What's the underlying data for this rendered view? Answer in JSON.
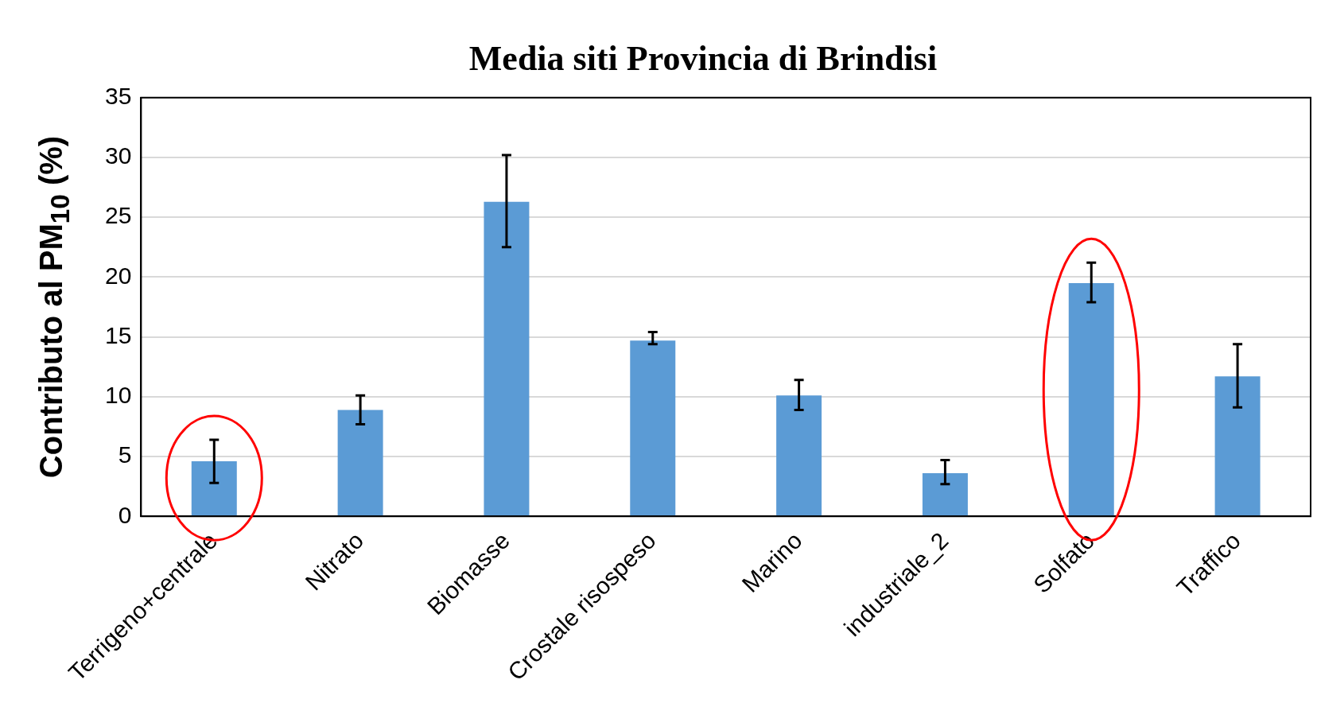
{
  "chart_data": {
    "type": "bar",
    "title": "Media siti Provincia di Brindisi",
    "ylabel": "Contributo al PM$_{10}$ (%)",
    "categories": [
      "Terrigeno+centrale",
      "Nitrato",
      "Biomasse",
      "Crostale risospeso",
      "Marino",
      "industriale_2",
      "Solfato",
      "Traffico"
    ],
    "values": [
      4.6,
      8.9,
      26.3,
      14.7,
      10.1,
      3.6,
      19.5,
      11.7
    ],
    "errors": [
      [
        2.8,
        6.4
      ],
      [
        7.7,
        10.1
      ],
      [
        22.5,
        30.2
      ],
      [
        14.4,
        15.4
      ],
      [
        8.9,
        11.4
      ],
      [
        2.7,
        4.7
      ],
      [
        17.9,
        21.2
      ],
      [
        9.1,
        14.4
      ]
    ],
    "color": "#5b9bd5",
    "ylim": [
      0,
      35
    ],
    "yticks": [
      0,
      5,
      10,
      15,
      20,
      25,
      30,
      35
    ],
    "grid": "y",
    "legend": false
  }
}
